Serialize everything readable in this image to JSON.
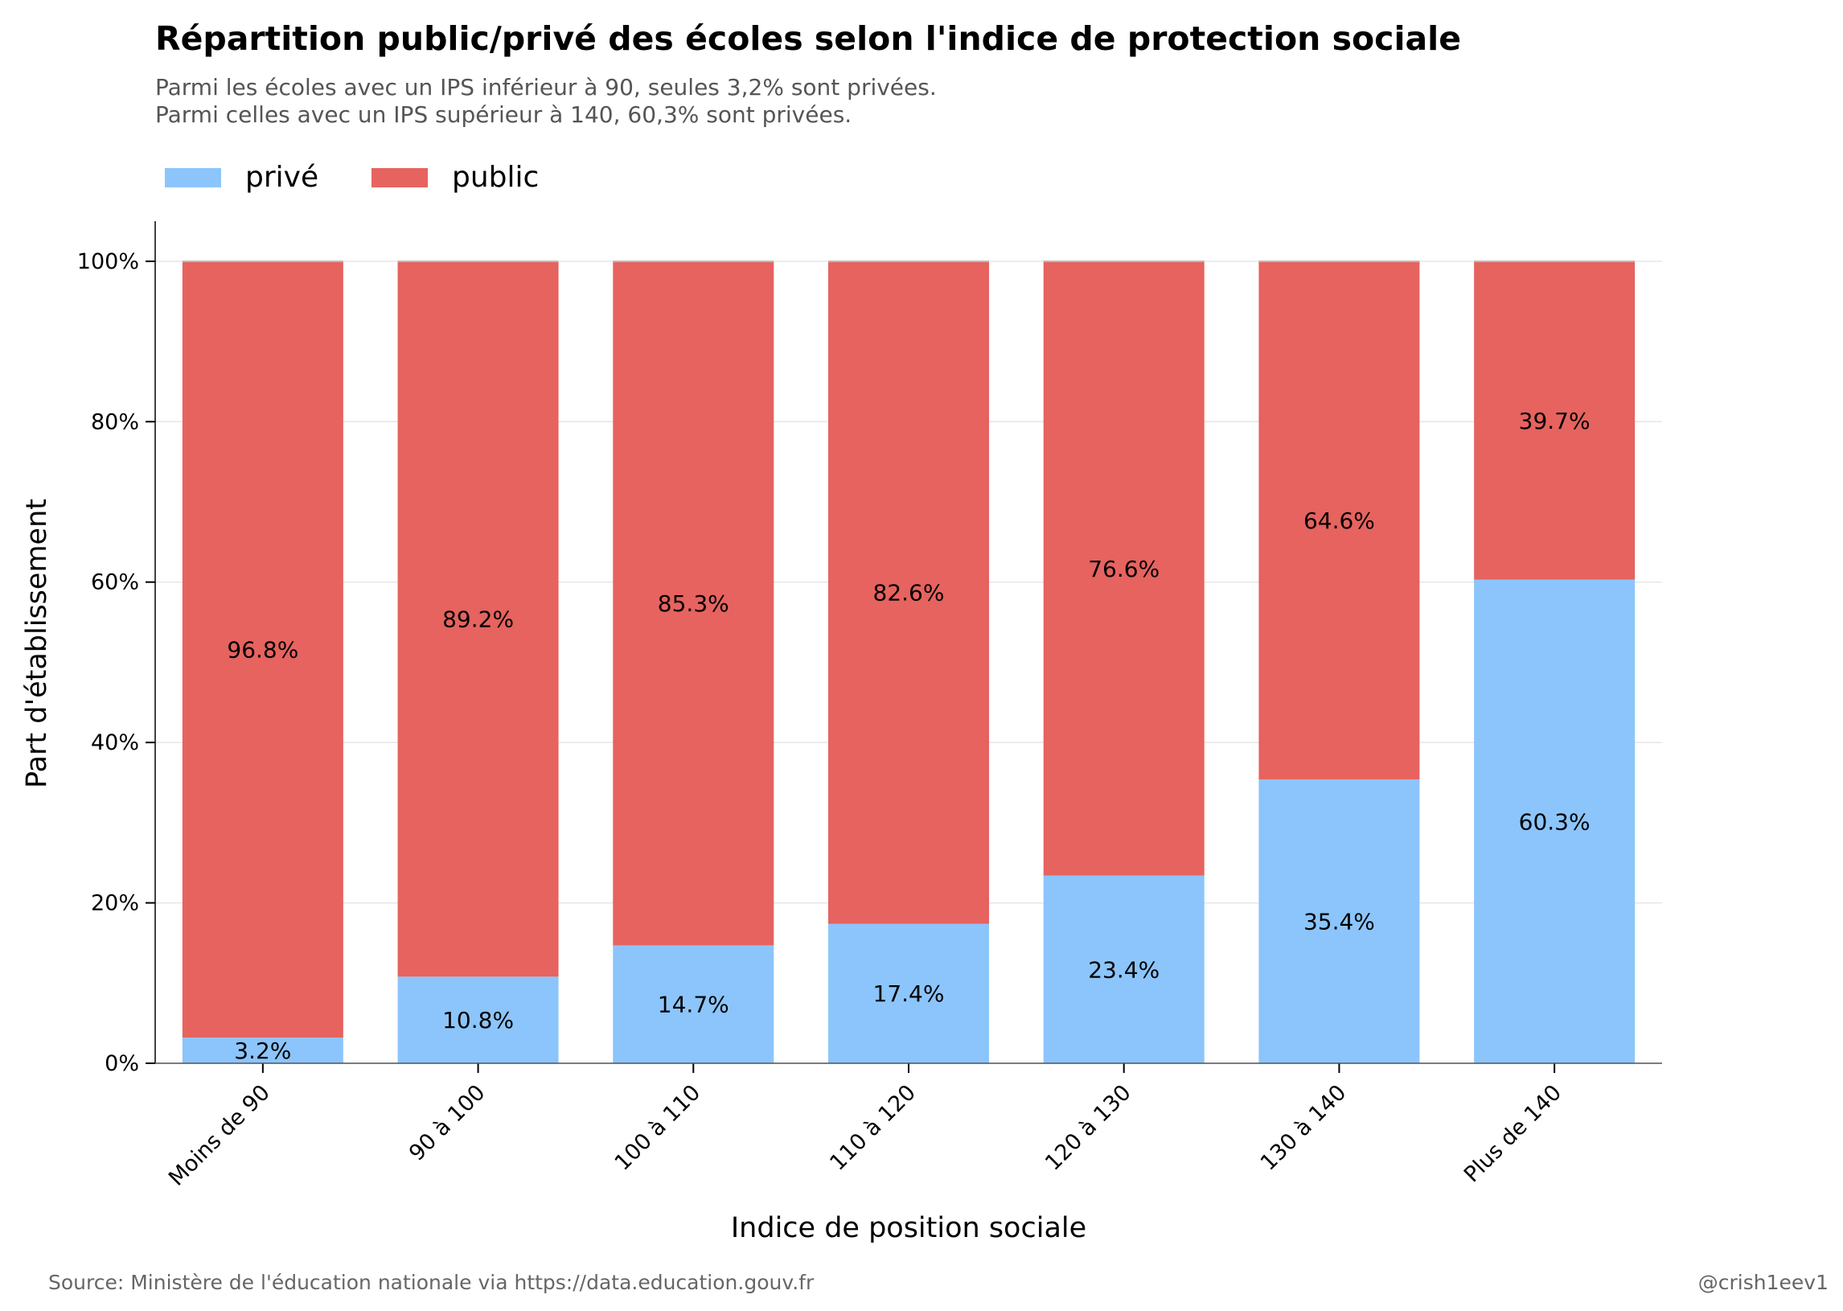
{
  "title": "Répartition public/privé des écoles selon l'indice de protection sociale",
  "subtitle_lines": [
    "Parmi les écoles avec un IPS inférieur à 90, seules 3,2% sont privées.",
    "Parmi celles avec un IPS supérieur à 140, 60,3% sont privées."
  ],
  "source": "Source: Ministère de l'éducation nationale via https://data.education.gouv.fr",
  "handle": "@crish1eev1",
  "colors": {
    "prive": "#8CC5FB",
    "public": "#E6635F"
  },
  "chart_data": {
    "type": "bar",
    "stacked": true,
    "xlabel": "Indice de position sociale",
    "ylabel": "Part d'établissement",
    "ylim": [
      0,
      105
    ],
    "yticks": [
      0,
      20,
      40,
      60,
      80,
      100
    ],
    "ytick_labels": [
      "0%",
      "20%",
      "40%",
      "60%",
      "80%",
      "100%"
    ],
    "categories": [
      "Moins de 90",
      "90 à 100",
      "100 à 110",
      "110 à 120",
      "120 à 130",
      "130 à 140",
      "Plus de 140"
    ],
    "series": [
      {
        "name": "privé",
        "values": [
          3.2,
          10.8,
          14.7,
          17.4,
          23.4,
          35.4,
          60.3
        ],
        "labels": [
          "3.2%",
          "10.8%",
          "14.7%",
          "17.4%",
          "23.4%",
          "35.4%",
          "60.3%"
        ]
      },
      {
        "name": "public",
        "values": [
          96.8,
          89.2,
          85.3,
          82.6,
          76.6,
          64.6,
          39.7
        ],
        "labels": [
          "96.8%",
          "89.2%",
          "85.3%",
          "82.6%",
          "76.6%",
          "64.6%",
          "39.7%"
        ]
      }
    ],
    "legend_position": "top-left",
    "grid": "horizontal"
  }
}
